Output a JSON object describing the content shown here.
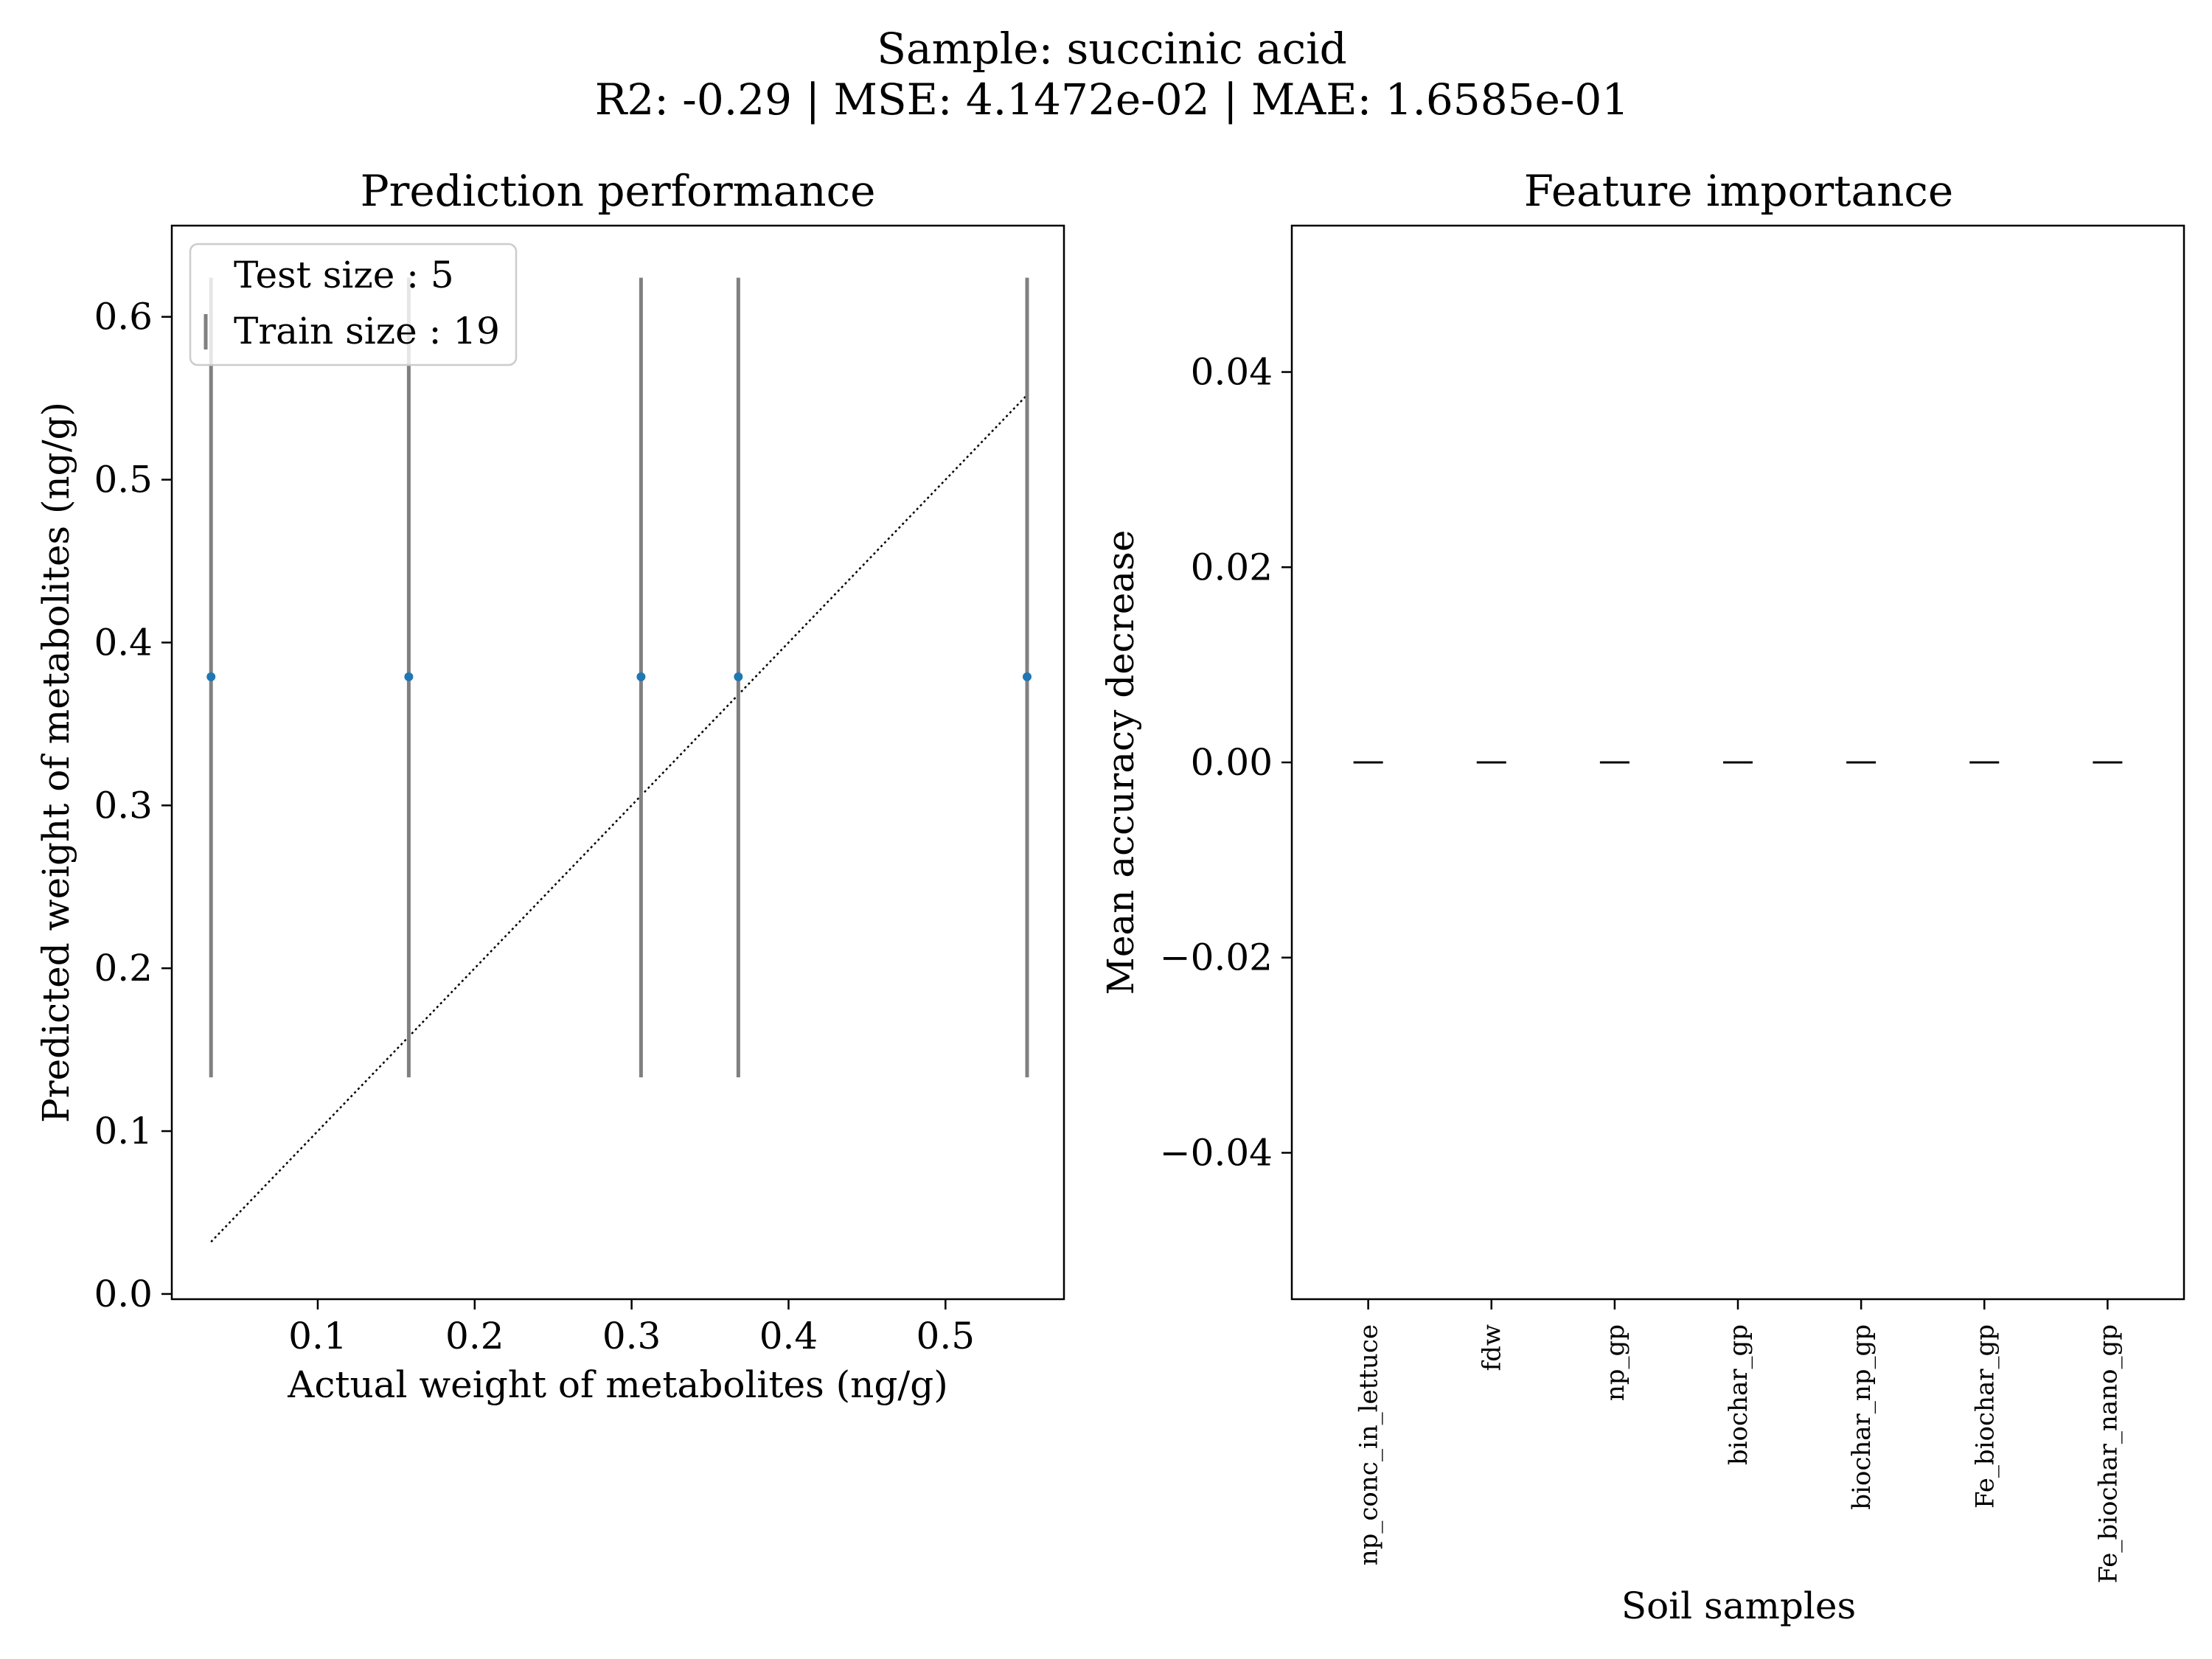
{
  "figure": {
    "suptitle_line1": "Sample: succinic acid",
    "suptitle_line2": "R2: -0.29 | MSE: 4.1472e-02 | MAE: 1.6585e-01"
  },
  "chart_data": [
    {
      "type": "scatter",
      "title": "Prediction performance",
      "xlabel": "Actual weight of metabolites (ng/g)",
      "ylabel": "Predicted weight of metabolites (ng/g)",
      "xlim": [
        0.007,
        0.5755
      ],
      "ylim": [
        -0.0032,
        0.656
      ],
      "xticks": [
        0.1,
        0.2,
        0.3,
        0.4,
        0.5
      ],
      "xtick_labels": [
        "0.1",
        "0.2",
        "0.3",
        "0.4",
        "0.5"
      ],
      "yticks": [
        0.0,
        0.1,
        0.2,
        0.3,
        0.4,
        0.5,
        0.6
      ],
      "ytick_labels": [
        "0.0",
        "0.1",
        "0.2",
        "0.3",
        "0.4",
        "0.5",
        "0.6"
      ],
      "legend": {
        "location": "upper-left",
        "entries": [
          "Test size : 5",
          "Train size : 19"
        ]
      },
      "points": [
        {
          "x": 0.032,
          "y": 0.379,
          "err_low": 0.133,
          "err_high": 0.624
        },
        {
          "x": 0.158,
          "y": 0.379,
          "err_low": 0.133,
          "err_high": 0.624
        },
        {
          "x": 0.306,
          "y": 0.379,
          "err_low": 0.133,
          "err_high": 0.624
        },
        {
          "x": 0.368,
          "y": 0.379,
          "err_low": 0.133,
          "err_high": 0.624
        },
        {
          "x": 0.552,
          "y": 0.379,
          "err_low": 0.133,
          "err_high": 0.624
        }
      ],
      "identity_line": {
        "x": [
          0.032,
          0.552
        ],
        "y": [
          0.032,
          0.552
        ]
      },
      "colors": {
        "points": "#1f77b4",
        "errorbars": "#808080",
        "line": "#000000"
      }
    },
    {
      "type": "bar",
      "title": "Feature importance",
      "xlabel": "Soil samples",
      "ylabel": "Mean accuracy decrease",
      "categories": [
        "np_conc_in_lettuce",
        "fdw",
        "np_gp",
        "biochar_gp",
        "biochar_np_gp",
        "Fe_biochar_gp",
        "Fe_biochar_nano_gp"
      ],
      "values": [
        0,
        0,
        0,
        0,
        0,
        0,
        0
      ],
      "errors": [
        0,
        0,
        0,
        0,
        0,
        0,
        0
      ],
      "ylim": [
        -0.055,
        0.055
      ],
      "yticks": [
        -0.04,
        -0.02,
        0.0,
        0.02,
        0.04
      ],
      "ytick_labels": [
        "−0.04",
        "−0.02",
        "0.00",
        "0.02",
        "0.04"
      ],
      "colors": {
        "bars": "#000000"
      }
    }
  ]
}
